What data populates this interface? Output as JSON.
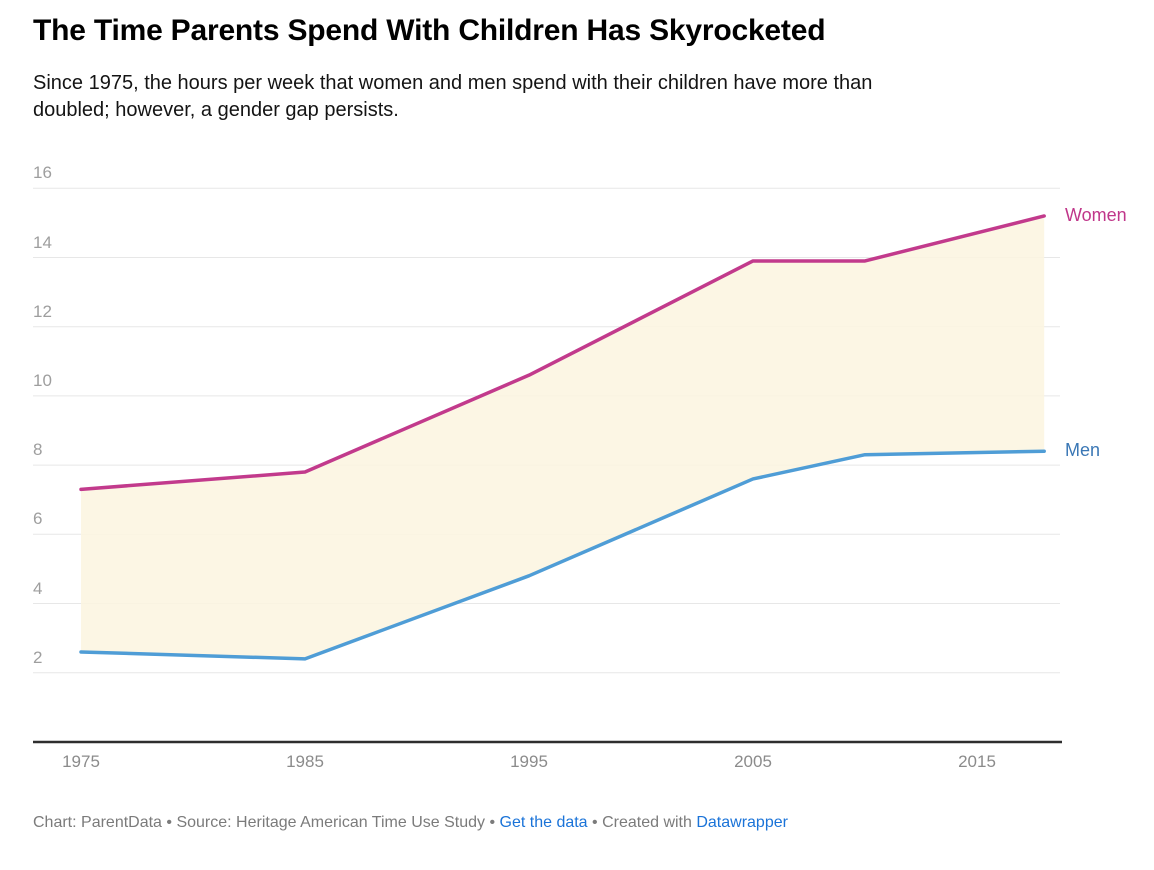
{
  "header": {
    "title": "The Time Parents Spend With Children Has Skyrocketed",
    "subtitle": "Since 1975, the hours per week that women and men spend with their children have more than doubled; however, a gender gap persists."
  },
  "chart_data": {
    "type": "line",
    "title": "The Time Parents Spend With Children Has Skyrocketed",
    "subtitle": "Since 1975, the hours per week that women and men spend with their children have more than doubled; however, a gender gap persists.",
    "x": [
      1975,
      1985,
      1995,
      2005,
      2010,
      2018
    ],
    "series": [
      {
        "name": "Women",
        "color": "#C23A8C",
        "label_color": "#C0368A",
        "values": [
          7.3,
          7.8,
          10.6,
          13.9,
          13.9,
          15.2
        ]
      },
      {
        "name": "Men",
        "color": "#4F9DD6",
        "label_color": "#3A77B5",
        "values": [
          2.6,
          2.4,
          4.8,
          7.6,
          8.3,
          8.4
        ]
      }
    ],
    "band_fill": "#FCF5DF",
    "yticks": [
      16,
      14,
      12,
      10,
      8,
      6,
      4,
      2
    ],
    "xticks": [
      1975,
      1985,
      1995,
      2005,
      2015
    ],
    "xlabel": "",
    "ylabel": "hours per week",
    "ylim": [
      0,
      16
    ],
    "grid": "horizontal",
    "legend": "direct line labels at right"
  },
  "footer": {
    "prefix": "Chart: ParentData • Source: Heritage American Time Use Study • ",
    "get_data_label": "Get the data",
    "middle": " • Created with ",
    "datawrapper_label": "Datawrapper"
  },
  "colors": {
    "women_line": "#C23A8C",
    "men_line": "#4F9DD6",
    "gap_fill": "#FCF5DF",
    "gridline": "#E7E7E7",
    "axis_line": "#2E2E2E",
    "link_blue": "#1A73D8"
  }
}
